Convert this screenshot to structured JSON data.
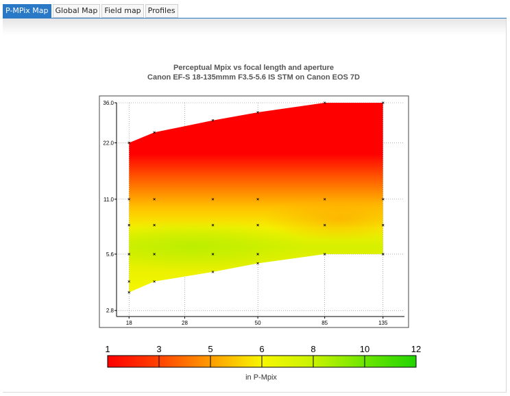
{
  "tabs": [
    {
      "label": "P-MPix Map",
      "active": true
    },
    {
      "label": "Global Map",
      "active": false
    },
    {
      "label": "Field map",
      "active": false
    },
    {
      "label": "Profiles",
      "active": false
    }
  ],
  "chart_data": {
    "type": "heatmap",
    "title": "Perceptual Mpix vs focal length and aperture",
    "subtitle": "Canon EF-S 18-135mmm F3.5-5.6 IS STM on Canon EOS 7D",
    "xlabel": "",
    "ylabel": "",
    "x_scale": "log",
    "y_scale": "log",
    "x_ticks": [
      18,
      28,
      50,
      85,
      135
    ],
    "y_ticks": [
      2.8,
      5.6,
      11.0,
      22.0,
      36.0
    ],
    "x_tick_labels": [
      "18",
      "28",
      "50",
      "85",
      "135"
    ],
    "y_tick_labels": [
      "2.8",
      "5.6",
      "11.0",
      "22.0",
      "36.0"
    ],
    "xlim": [
      16.3,
      160
    ],
    "ylim": [
      2.6,
      36.0
    ],
    "grid": true,
    "aperture_range": [
      {
        "focal": 18,
        "min_f": 3.5,
        "max_f": 22
      },
      {
        "focal": 22,
        "min_f": 4.0,
        "max_f": 25
      },
      {
        "focal": 35,
        "min_f": 4.5,
        "max_f": 29
      },
      {
        "focal": 50,
        "min_f": 5.0,
        "max_f": 32
      },
      {
        "focal": 85,
        "min_f": 5.6,
        "max_f": 36
      },
      {
        "focal": 135,
        "min_f": 5.6,
        "max_f": 36
      }
    ],
    "sample_points": [
      {
        "focal": 18,
        "aperture": 3.5
      },
      {
        "focal": 18,
        "aperture": 4.0
      },
      {
        "focal": 18,
        "aperture": 5.6
      },
      {
        "focal": 18,
        "aperture": 8.0
      },
      {
        "focal": 18,
        "aperture": 11.0
      },
      {
        "focal": 18,
        "aperture": 22.0
      },
      {
        "focal": 22,
        "aperture": 4.0
      },
      {
        "focal": 22,
        "aperture": 5.6
      },
      {
        "focal": 22,
        "aperture": 8.0
      },
      {
        "focal": 22,
        "aperture": 11.0
      },
      {
        "focal": 22,
        "aperture": 25.0
      },
      {
        "focal": 35,
        "aperture": 4.5
      },
      {
        "focal": 35,
        "aperture": 5.6
      },
      {
        "focal": 35,
        "aperture": 8.0
      },
      {
        "focal": 35,
        "aperture": 11.0
      },
      {
        "focal": 35,
        "aperture": 29.0
      },
      {
        "focal": 50,
        "aperture": 5.0
      },
      {
        "focal": 50,
        "aperture": 5.6
      },
      {
        "focal": 50,
        "aperture": 8.0
      },
      {
        "focal": 50,
        "aperture": 11.0
      },
      {
        "focal": 50,
        "aperture": 32.0
      },
      {
        "focal": 85,
        "aperture": 5.6
      },
      {
        "focal": 85,
        "aperture": 8.0
      },
      {
        "focal": 85,
        "aperture": 11.0
      },
      {
        "focal": 85,
        "aperture": 36.0
      },
      {
        "focal": 135,
        "aperture": 5.6
      },
      {
        "focal": 135,
        "aperture": 8.0
      },
      {
        "focal": 135,
        "aperture": 11.0
      },
      {
        "focal": 135,
        "aperture": 36.0
      }
    ],
    "approx_pmpix": [
      {
        "focal": 18,
        "aperture": 22,
        "value": 1.5
      },
      {
        "focal": 18,
        "aperture": 11,
        "value": 5.5
      },
      {
        "focal": 18,
        "aperture": 5.6,
        "value": 7.5
      },
      {
        "focal": 18,
        "aperture": 3.5,
        "value": 6.8
      },
      {
        "focal": 35,
        "aperture": 5.6,
        "value": 7.6
      },
      {
        "focal": 50,
        "aperture": 11,
        "value": 4.8
      },
      {
        "focal": 85,
        "aperture": 8,
        "value": 4.5
      },
      {
        "focal": 135,
        "aperture": 5.6,
        "value": 6.0
      },
      {
        "focal": 135,
        "aperture": 36,
        "value": 1.0
      }
    ],
    "legend": {
      "ticks": [
        "1",
        "3",
        "5",
        "6",
        "8",
        "10",
        "12"
      ],
      "tick_values": [
        1,
        3,
        5,
        6,
        8,
        10,
        12
      ],
      "colors": [
        "#ff0000",
        "#ff7700",
        "#ffcc00",
        "#f7f700",
        "#a8f000",
        "#3bdc00"
      ],
      "unit_label": "in P-Mpix"
    }
  }
}
